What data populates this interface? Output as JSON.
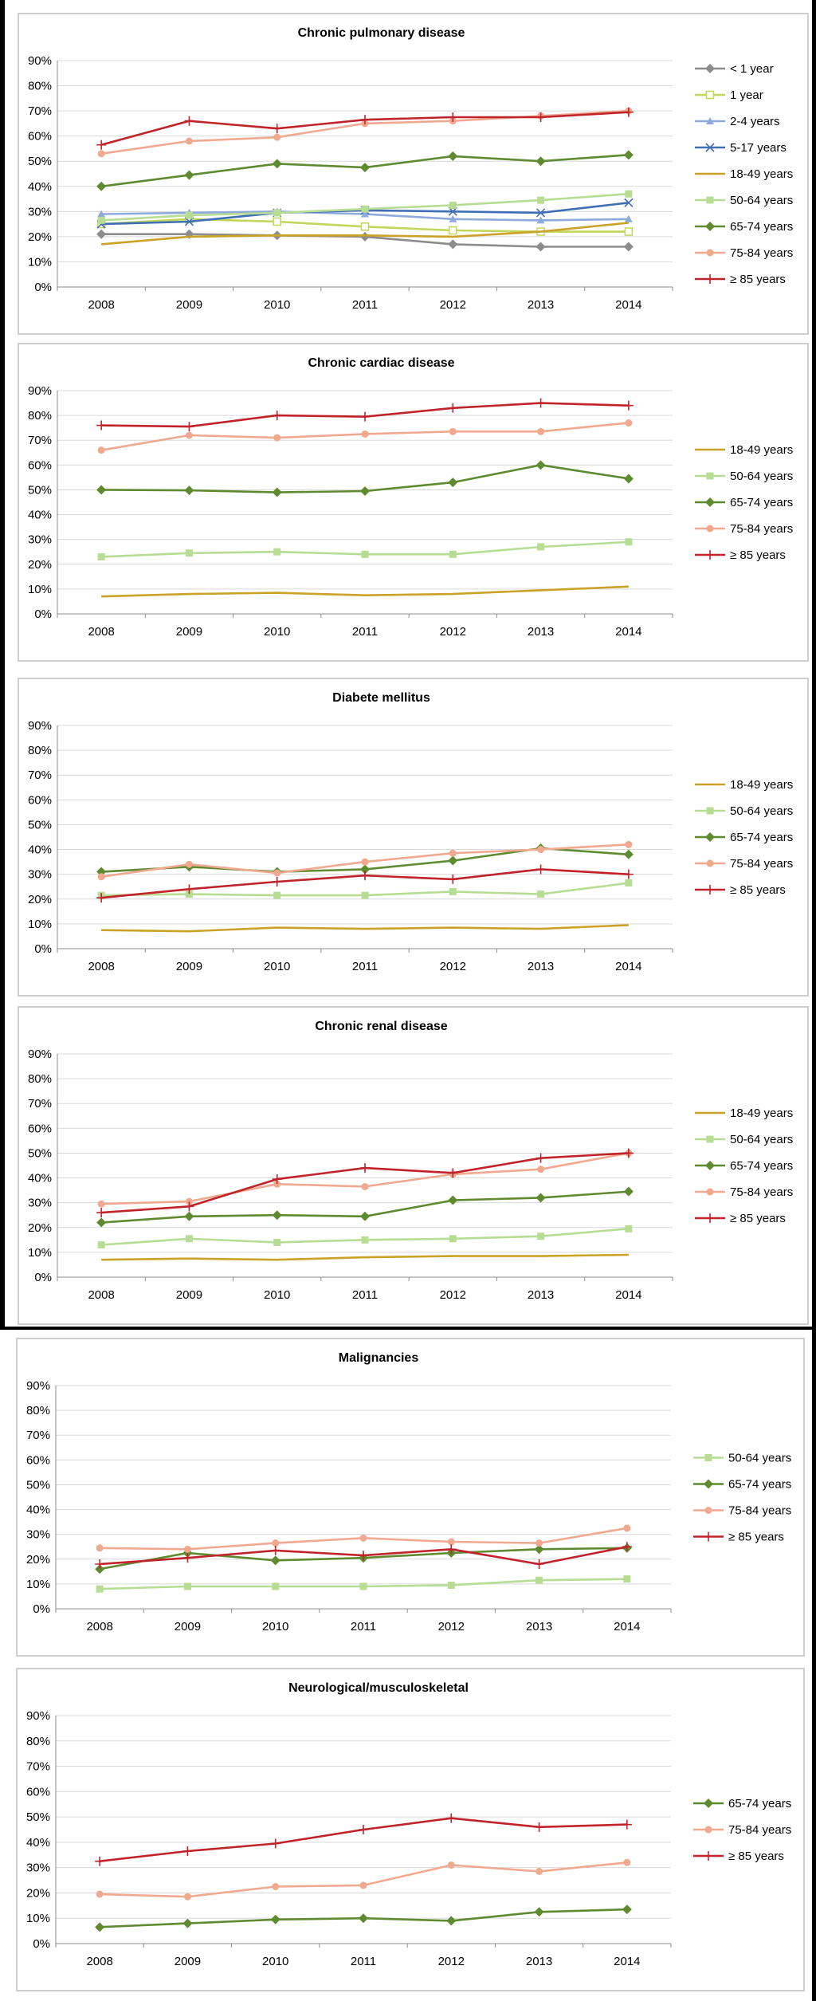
{
  "chart_data": [
    {
      "type": "line",
      "title": "Chronic pulmonary disease",
      "x": [
        "2008",
        "2009",
        "2010",
        "2011",
        "2012",
        "2013",
        "2014"
      ],
      "ylim": [
        0,
        90
      ],
      "yticks": [
        "0%",
        "10%",
        "20%",
        "30%",
        "40%",
        "50%",
        "60%",
        "70%",
        "80%",
        "90%"
      ],
      "grid": true,
      "legend": "right",
      "series": [
        {
          "name": "< 1 year",
          "color": "#8c8c8c",
          "marker": "diamond",
          "values": [
            21,
            21,
            20.5,
            20,
            17,
            16,
            16
          ]
        },
        {
          "name": "1 year",
          "color": "#c2d65a",
          "marker": "square-open",
          "values": [
            25,
            27,
            26,
            24,
            22.5,
            22,
            22
          ]
        },
        {
          "name": "2-4 years",
          "color": "#8eaadb",
          "marker": "triangle",
          "values": [
            29,
            29.5,
            30,
            29,
            27,
            26.5,
            27
          ]
        },
        {
          "name": "5-17 years",
          "color": "#3f6fb5",
          "marker": "x",
          "values": [
            25,
            26,
            29.5,
            30.5,
            30,
            29.5,
            33.5
          ]
        },
        {
          "name": "18-49 years",
          "color": "#c9a227",
          "marker": "none",
          "values": [
            17,
            20,
            20.5,
            20.5,
            20,
            22,
            25.5
          ]
        },
        {
          "name": "50-64 years",
          "color": "#b7dd94",
          "marker": "square",
          "values": [
            26.5,
            28.5,
            29.5,
            31,
            32.5,
            34.5,
            37
          ]
        },
        {
          "name": "65-74 years",
          "color": "#5e8a30",
          "marker": "diamond",
          "values": [
            40,
            44.5,
            49,
            47.5,
            52,
            50,
            52.5
          ]
        },
        {
          "name": "75-84 years",
          "color": "#f0a98f",
          "marker": "circle",
          "values": [
            53,
            58,
            59.5,
            65,
            66,
            68,
            70
          ]
        },
        {
          "name": "≥ 85 years",
          "color": "#c0242a",
          "marker": "plus",
          "values": [
            56.5,
            66,
            63,
            66.5,
            67.5,
            67.5,
            69.5
          ]
        }
      ]
    },
    {
      "type": "line",
      "title": "Chronic cardiac disease",
      "x": [
        "2008",
        "2009",
        "2010",
        "2011",
        "2012",
        "2013",
        "2014"
      ],
      "ylim": [
        0,
        90
      ],
      "yticks": [
        "0%",
        "10%",
        "20%",
        "30%",
        "40%",
        "50%",
        "60%",
        "70%",
        "80%",
        "90%"
      ],
      "grid": true,
      "legend": "right",
      "series": [
        {
          "name": "18-49 years",
          "color": "#c9a227",
          "marker": "none",
          "values": [
            7,
            8,
            8.5,
            7.5,
            8,
            9.5,
            11
          ]
        },
        {
          "name": "50-64 years",
          "color": "#b7dd94",
          "marker": "square",
          "values": [
            23,
            24.5,
            25,
            24,
            24,
            27,
            29
          ]
        },
        {
          "name": "65-74 years",
          "color": "#5e8a30",
          "marker": "diamond",
          "values": [
            50,
            49.8,
            49,
            49.5,
            53,
            60,
            54.5
          ]
        },
        {
          "name": "75-84 years",
          "color": "#f0a98f",
          "marker": "circle",
          "values": [
            66,
            72,
            71,
            72.5,
            73.5,
            73.5,
            77
          ]
        },
        {
          "name": "≥ 85 years",
          "color": "#c0242a",
          "marker": "plus",
          "values": [
            76,
            75.5,
            80,
            79.5,
            83,
            85,
            84
          ]
        }
      ]
    },
    {
      "type": "line",
      "title": "Diabete mellitus",
      "x": [
        "2008",
        "2009",
        "2010",
        "2011",
        "2012",
        "2013",
        "2014"
      ],
      "ylim": [
        0,
        90
      ],
      "yticks": [
        "0%",
        "10%",
        "20%",
        "30%",
        "40%",
        "50%",
        "60%",
        "70%",
        "80%",
        "90%"
      ],
      "grid": true,
      "legend": "right",
      "series": [
        {
          "name": "18-49 years",
          "color": "#c9a227",
          "marker": "none",
          "values": [
            7.5,
            7,
            8.5,
            8,
            8.5,
            8,
            9.5
          ]
        },
        {
          "name": "50-64 years",
          "color": "#b7dd94",
          "marker": "square",
          "values": [
            21.5,
            22,
            21.5,
            21.5,
            23,
            22,
            26.5
          ]
        },
        {
          "name": "65-74 years",
          "color": "#5e8a30",
          "marker": "diamond",
          "values": [
            31,
            33,
            31,
            32,
            35.5,
            40.5,
            38
          ]
        },
        {
          "name": "75-84 years",
          "color": "#f0a98f",
          "marker": "circle",
          "values": [
            29,
            34,
            30.5,
            35,
            38.5,
            40,
            42
          ]
        },
        {
          "name": "≥ 85 years",
          "color": "#c0242a",
          "marker": "plus",
          "values": [
            20.5,
            24,
            27,
            29.5,
            28,
            32,
            30
          ]
        }
      ]
    },
    {
      "type": "line",
      "title": "Chronic renal disease",
      "x": [
        "2008",
        "2009",
        "2010",
        "2011",
        "2012",
        "2013",
        "2014"
      ],
      "ylim": [
        0,
        90
      ],
      "yticks": [
        "0%",
        "10%",
        "20%",
        "30%",
        "40%",
        "50%",
        "60%",
        "70%",
        "80%",
        "90%"
      ],
      "grid": true,
      "legend": "right",
      "series": [
        {
          "name": "18-49 years",
          "color": "#c9a227",
          "marker": "none",
          "values": [
            7,
            7.5,
            7,
            8,
            8.5,
            8.5,
            9
          ]
        },
        {
          "name": "50-64 years",
          "color": "#b7dd94",
          "marker": "square",
          "values": [
            13,
            15.5,
            14,
            15,
            15.5,
            16.5,
            19.5
          ]
        },
        {
          "name": "65-74 years",
          "color": "#5e8a30",
          "marker": "diamond",
          "values": [
            22,
            24.5,
            25,
            24.5,
            31,
            32,
            34.5
          ]
        },
        {
          "name": "75-84 years",
          "color": "#f0a98f",
          "marker": "circle",
          "values": [
            29.5,
            30.5,
            37.5,
            36.5,
            41.5,
            43.5,
            50
          ]
        },
        {
          "name": "≥ 85 years",
          "color": "#c0242a",
          "marker": "plus",
          "values": [
            26,
            28.5,
            39.5,
            44,
            42,
            48,
            50
          ]
        }
      ]
    },
    {
      "type": "line",
      "title": "Malignancies",
      "x": [
        "2008",
        "2009",
        "2010",
        "2011",
        "2012",
        "2013",
        "2014"
      ],
      "ylim": [
        0,
        90
      ],
      "yticks": [
        "0%",
        "10%",
        "20%",
        "30%",
        "40%",
        "50%",
        "60%",
        "70%",
        "80%",
        "90%"
      ],
      "grid": true,
      "legend": "right",
      "series": [
        {
          "name": "50-64 years",
          "color": "#b7dd94",
          "marker": "square",
          "values": [
            8,
            9,
            9,
            9,
            9.5,
            11.5,
            12
          ]
        },
        {
          "name": "65-74 years",
          "color": "#5e8a30",
          "marker": "diamond",
          "values": [
            16,
            22.5,
            19.5,
            20.5,
            22.5,
            24,
            24.5
          ]
        },
        {
          "name": "75-84 years",
          "color": "#f0a98f",
          "marker": "circle",
          "values": [
            24.5,
            24,
            26.5,
            28.5,
            27,
            26.5,
            32.5
          ]
        },
        {
          "name": "≥ 85 years",
          "color": "#c0242a",
          "marker": "plus",
          "values": [
            18,
            20.5,
            23.5,
            21.5,
            24,
            18,
            25
          ]
        }
      ]
    },
    {
      "type": "line",
      "title": "Neurological/musculoskeletal",
      "x": [
        "2008",
        "2009",
        "2010",
        "2011",
        "2012",
        "2013",
        "2014"
      ],
      "ylim": [
        0,
        90
      ],
      "yticks": [
        "0%",
        "10%",
        "20%",
        "30%",
        "40%",
        "50%",
        "60%",
        "70%",
        "80%",
        "90%"
      ],
      "grid": true,
      "legend": "right",
      "series": [
        {
          "name": "65-74 years",
          "color": "#5e8a30",
          "marker": "diamond",
          "values": [
            6.5,
            8,
            9.5,
            10,
            9,
            12.5,
            13.5
          ]
        },
        {
          "name": "75-84 years",
          "color": "#f0a98f",
          "marker": "circle",
          "values": [
            19.5,
            18.5,
            22.5,
            23,
            31,
            28.5,
            32
          ]
        },
        {
          "name": "≥ 85 years",
          "color": "#c0242a",
          "marker": "plus",
          "values": [
            32.5,
            36.5,
            39.5,
            45,
            49.5,
            46,
            47
          ]
        }
      ]
    }
  ]
}
